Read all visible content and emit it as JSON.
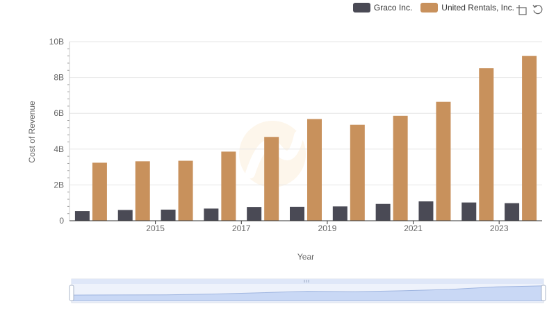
{
  "toolbox": {
    "zoom_icon": "zoom-icon",
    "restore_icon": "restore-icon"
  },
  "chart_data": {
    "type": "bar",
    "xlabel": "Year",
    "ylabel": "Cost of Revenue",
    "ylim": [
      0,
      10000000000
    ],
    "yticks": [
      "0",
      "2B",
      "4B",
      "6B",
      "8B",
      "10B"
    ],
    "x_tick_labels": [
      "2015",
      "2017",
      "2019",
      "2021",
      "2023"
    ],
    "categories": [
      "2014",
      "2015",
      "2016",
      "2017",
      "2018",
      "2019",
      "2020",
      "2021",
      "2022",
      "2023",
      "2024"
    ],
    "grid": true,
    "legend_position": "top-right",
    "series": [
      {
        "name": "Graco Inc.",
        "color": "#4a4a55",
        "values": [
          540000000,
          600000000,
          620000000,
          680000000,
          770000000,
          780000000,
          800000000,
          940000000,
          1080000000,
          1020000000,
          980000000
        ]
      },
      {
        "name": "United Rentals, Inc.",
        "color": "#c8915c",
        "values": [
          3240000000,
          3320000000,
          3350000000,
          3860000000,
          4680000000,
          5680000000,
          5360000000,
          5860000000,
          6640000000,
          8520000000,
          9200000000
        ]
      }
    ]
  }
}
